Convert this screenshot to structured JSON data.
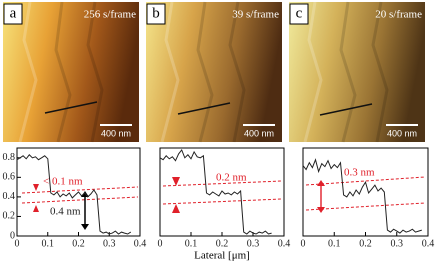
{
  "panels": [
    {
      "label": "a",
      "rate": "256 s/frame",
      "scale": "400 nm"
    },
    {
      "label": "b",
      "rate": "39 s/frame",
      "scale": "400 nm"
    },
    {
      "label": "c",
      "rate": "20 s/frame",
      "scale": "400 nm"
    }
  ],
  "chart_data": [
    {
      "type": "line",
      "xlim": [
        0,
        0.4
      ],
      "ylim": [
        0,
        0.9
      ],
      "xticks": [
        0,
        0.1,
        0.2,
        0.3,
        0.4
      ],
      "yticks": [
        0,
        0.2,
        0.4,
        0.6,
        0.8
      ],
      "annotations": [
        "< 0.1 nm",
        "0.4 nm"
      ],
      "x": [
        0,
        0.01,
        0.02,
        0.03,
        0.04,
        0.05,
        0.06,
        0.07,
        0.08,
        0.09,
        0.1,
        0.11,
        0.12,
        0.13,
        0.14,
        0.15,
        0.16,
        0.17,
        0.18,
        0.19,
        0.2,
        0.21,
        0.22,
        0.23,
        0.24,
        0.25,
        0.26,
        0.27,
        0.28,
        0.29,
        0.3,
        0.31,
        0.32,
        0.33,
        0.34,
        0.35,
        0.36,
        0.37
      ],
      "series": [
        {
          "color": "#222222",
          "values": [
            0.78,
            0.8,
            0.82,
            0.79,
            0.83,
            0.8,
            0.81,
            0.78,
            0.8,
            0.82,
            0.79,
            0.44,
            0.42,
            0.45,
            0.4,
            0.43,
            0.41,
            0.44,
            0.39,
            0.42,
            0.45,
            0.41,
            0.44,
            0.4,
            0.43,
            0.47,
            0.42,
            0.05,
            0.03,
            0.04,
            0.02,
            0.03,
            0.05,
            0.02,
            0.04,
            0.03,
            0.02,
            0.04
          ]
        }
      ]
    },
    {
      "type": "line",
      "xlim": [
        0,
        0.4
      ],
      "ylim": [
        0,
        0.9
      ],
      "xticks": [
        0,
        0.1,
        0.2,
        0.3,
        0.4
      ],
      "xlabel": "Lateral [μm]",
      "annotations": [
        "0.2 nm"
      ],
      "x": [
        0,
        0.01,
        0.02,
        0.03,
        0.04,
        0.05,
        0.06,
        0.07,
        0.08,
        0.09,
        0.1,
        0.11,
        0.12,
        0.13,
        0.14,
        0.15,
        0.16,
        0.17,
        0.18,
        0.19,
        0.2,
        0.21,
        0.22,
        0.23,
        0.24,
        0.25,
        0.26,
        0.27,
        0.28,
        0.29,
        0.3,
        0.31,
        0.32,
        0.33,
        0.34,
        0.35,
        0.36
      ],
      "series": [
        {
          "color": "#222222",
          "values": [
            0.8,
            0.78,
            0.82,
            0.79,
            0.81,
            0.77,
            0.84,
            0.88,
            0.8,
            0.83,
            0.79,
            0.86,
            0.81,
            0.8,
            0.82,
            0.44,
            0.42,
            0.45,
            0.43,
            0.41,
            0.46,
            0.43,
            0.44,
            0.42,
            0.45,
            0.43,
            0.46,
            0.04,
            0.02,
            0.05,
            0.03,
            0.02,
            0.04,
            0.03,
            0.05,
            0.02,
            0.03
          ]
        }
      ]
    },
    {
      "type": "line",
      "xlim": [
        0,
        0.4
      ],
      "ylim": [
        0,
        0.9
      ],
      "xticks": [
        0,
        0.1,
        0.2,
        0.3,
        0.4
      ],
      "annotations": [
        "0.3 nm"
      ],
      "x": [
        0,
        0.01,
        0.02,
        0.03,
        0.04,
        0.05,
        0.06,
        0.07,
        0.08,
        0.09,
        0.1,
        0.11,
        0.12,
        0.13,
        0.14,
        0.15,
        0.16,
        0.17,
        0.18,
        0.19,
        0.2,
        0.21,
        0.22,
        0.23,
        0.24,
        0.25,
        0.26,
        0.27,
        0.28,
        0.29,
        0.3,
        0.31,
        0.32,
        0.33,
        0.34,
        0.35,
        0.36,
        0.37,
        0.38
      ],
      "series": [
        {
          "color": "#222222",
          "values": [
            0.72,
            0.68,
            0.75,
            0.7,
            0.78,
            0.66,
            0.74,
            0.71,
            0.77,
            0.69,
            0.73,
            0.7,
            0.75,
            0.42,
            0.4,
            0.45,
            0.41,
            0.47,
            0.43,
            0.5,
            0.55,
            0.44,
            0.48,
            0.52,
            0.46,
            0.49,
            0.45,
            0.06,
            0.04,
            0.07,
            0.05,
            0.03,
            0.06,
            0.04,
            0.05,
            0.07,
            0.04,
            0.05,
            0.06
          ]
        }
      ]
    }
  ]
}
